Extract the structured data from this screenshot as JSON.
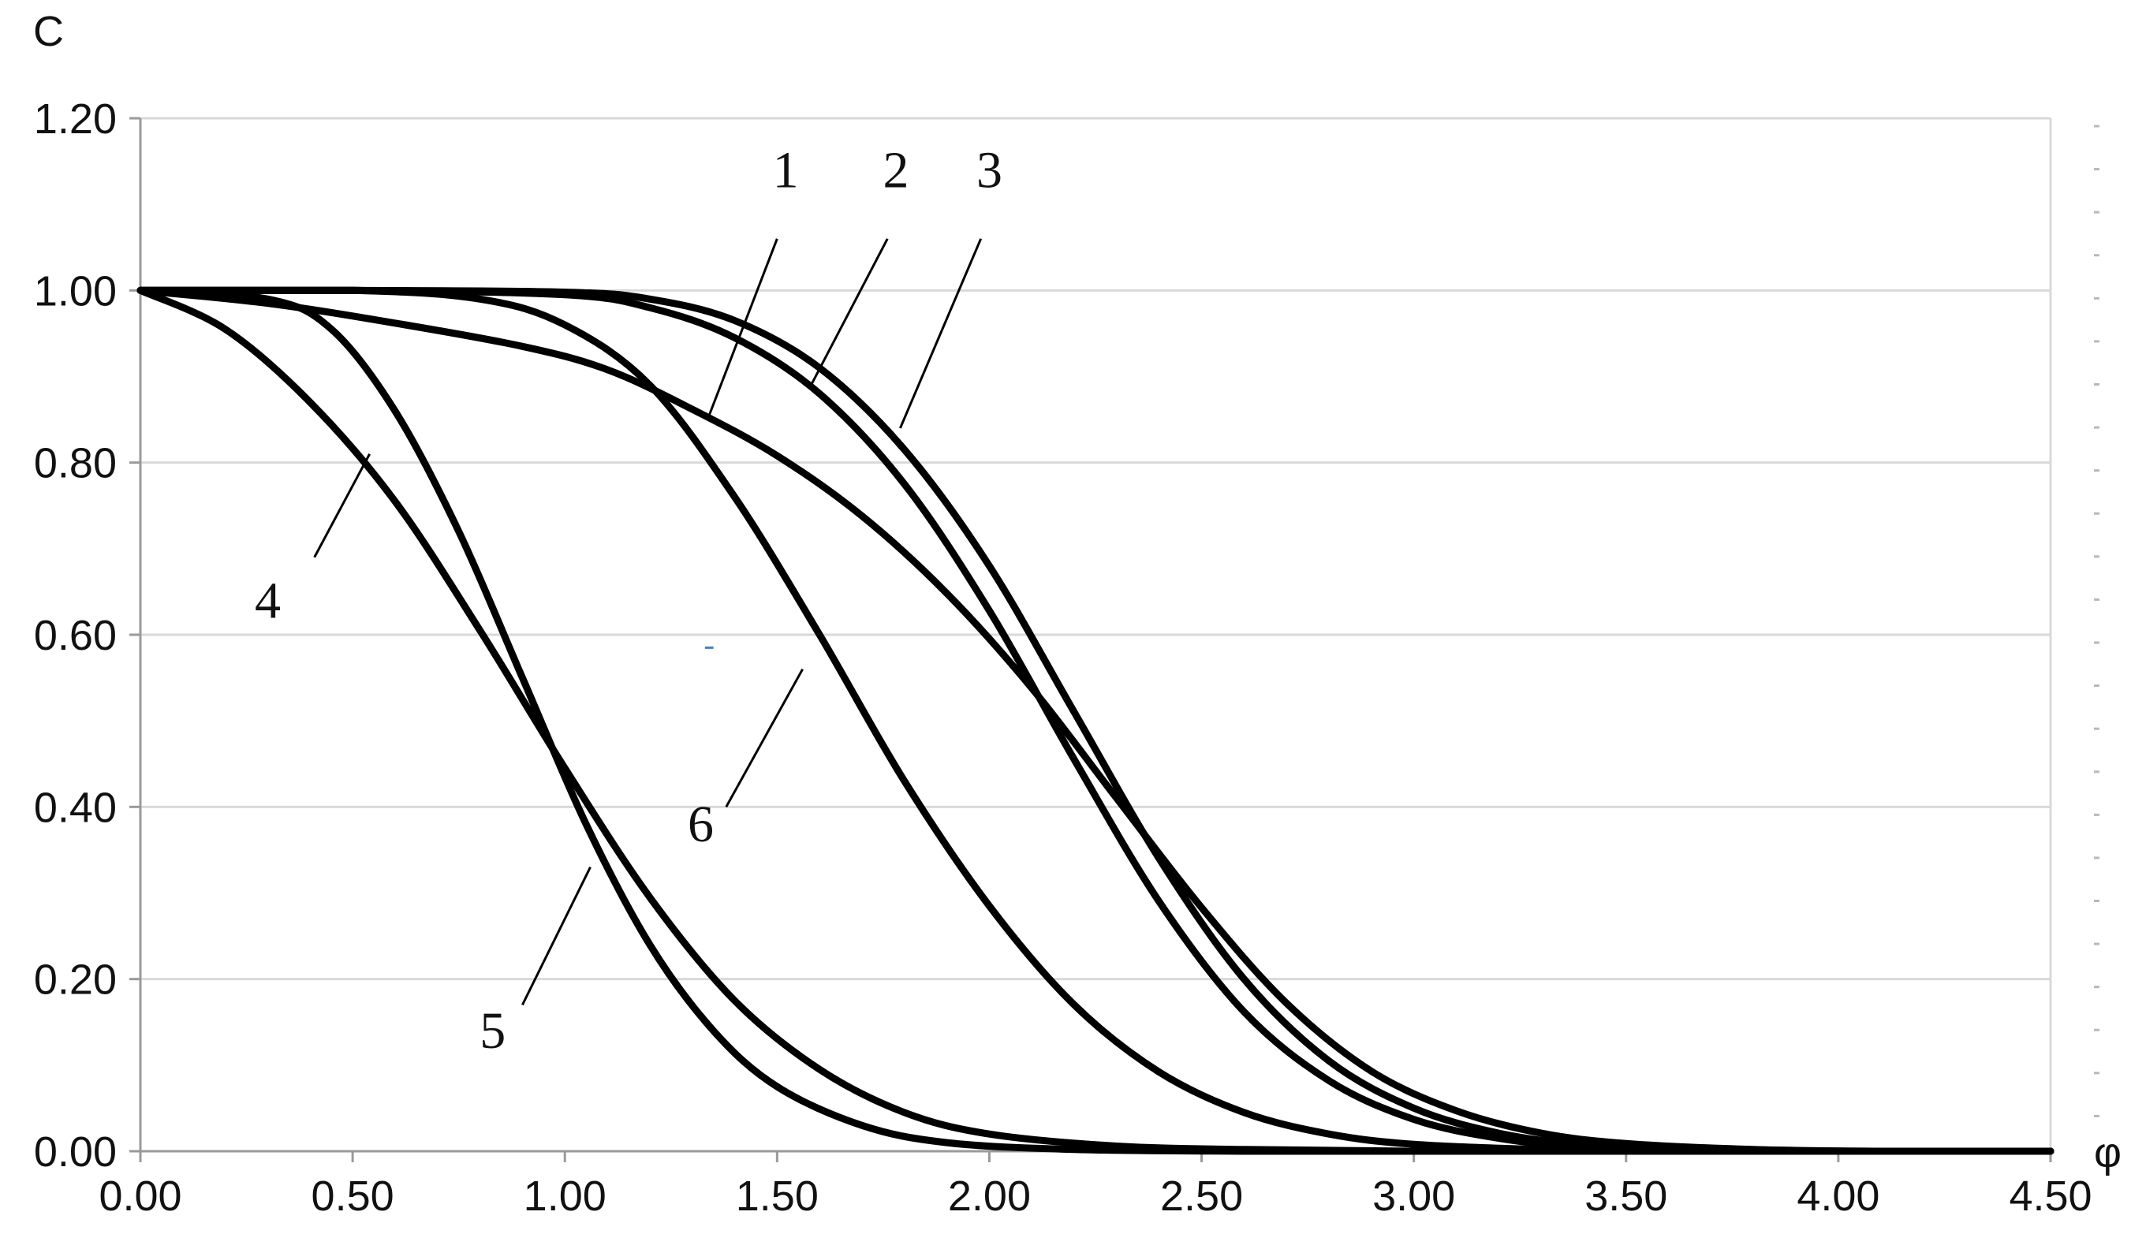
{
  "chart_data": {
    "type": "line",
    "title": "",
    "xlabel": "φ",
    "ylabel": "C",
    "xlim": [
      0,
      4.5
    ],
    "ylim": [
      0,
      1.2
    ],
    "x_tick_labels": [
      "0.00",
      "0.50",
      "1.00",
      "1.50",
      "2.00",
      "2.50",
      "3.00",
      "3.50",
      "4.00",
      "4.50"
    ],
    "y_tick_labels": [
      "0.00",
      "0.20",
      "0.40",
      "0.60",
      "0.80",
      "1.00",
      "1.20"
    ],
    "grid": "horizontal",
    "line_color": "#000000",
    "series": [
      {
        "name": "1",
        "x": [
          0.0,
          0.3,
          0.6,
          0.9,
          1.1,
          1.3,
          1.5,
          1.7,
          1.9,
          2.1,
          2.3,
          2.5,
          2.7,
          2.9,
          3.1,
          3.3,
          3.5,
          3.8,
          4.1,
          4.5
        ],
        "y": [
          1.0,
          0.985,
          0.962,
          0.935,
          0.908,
          0.862,
          0.808,
          0.738,
          0.648,
          0.538,
          0.41,
          0.283,
          0.172,
          0.093,
          0.047,
          0.021,
          0.009,
          0.002,
          0.0,
          0.0
        ]
      },
      {
        "name": "2",
        "x": [
          0.0,
          0.5,
          1.0,
          1.2,
          1.4,
          1.6,
          1.8,
          2.0,
          2.2,
          2.4,
          2.6,
          2.8,
          3.0,
          3.2,
          3.4,
          3.7,
          4.0,
          4.5
        ],
        "y": [
          1.0,
          1.0,
          0.995,
          0.98,
          0.945,
          0.88,
          0.775,
          0.628,
          0.455,
          0.29,
          0.162,
          0.082,
          0.037,
          0.015,
          0.005,
          0.001,
          0.0,
          0.0
        ]
      },
      {
        "name": "3",
        "x": [
          0.0,
          0.5,
          1.0,
          1.2,
          1.4,
          1.6,
          1.8,
          2.0,
          2.2,
          2.4,
          2.6,
          2.8,
          3.0,
          3.2,
          3.4,
          3.7,
          4.0,
          4.5
        ],
        "y": [
          1.0,
          1.0,
          0.998,
          0.99,
          0.965,
          0.91,
          0.815,
          0.68,
          0.51,
          0.34,
          0.2,
          0.105,
          0.05,
          0.021,
          0.008,
          0.002,
          0.0,
          0.0
        ]
      },
      {
        "name": "4",
        "x": [
          0.0,
          0.2,
          0.4,
          0.6,
          0.8,
          1.0,
          1.2,
          1.4,
          1.6,
          1.8,
          2.0,
          2.3,
          2.6,
          3.0,
          3.5,
          4.5
        ],
        "y": [
          1.0,
          0.955,
          0.87,
          0.755,
          0.605,
          0.445,
          0.295,
          0.175,
          0.095,
          0.045,
          0.02,
          0.006,
          0.002,
          0.0,
          0.0,
          0.0
        ]
      },
      {
        "name": "5",
        "x": [
          0.0,
          0.3,
          0.45,
          0.6,
          0.75,
          0.9,
          1.05,
          1.2,
          1.35,
          1.5,
          1.7,
          1.9,
          2.2,
          2.6,
          3.0,
          4.5
        ],
        "y": [
          1.0,
          0.99,
          0.955,
          0.86,
          0.72,
          0.55,
          0.38,
          0.24,
          0.14,
          0.075,
          0.03,
          0.01,
          0.002,
          0.0,
          0.0,
          0.0
        ]
      },
      {
        "name": "6",
        "x": [
          0.0,
          0.5,
          0.8,
          1.0,
          1.2,
          1.4,
          1.6,
          1.8,
          2.0,
          2.2,
          2.4,
          2.6,
          2.8,
          3.0,
          3.3,
          3.6,
          4.5
        ],
        "y": [
          1.0,
          1.0,
          0.99,
          0.96,
          0.89,
          0.76,
          0.6,
          0.43,
          0.285,
          0.17,
          0.092,
          0.045,
          0.02,
          0.008,
          0.002,
          0.0,
          0.0
        ]
      }
    ],
    "labels": [
      {
        "text": "1",
        "label_at": [
          1.52,
          1.14
        ],
        "line_from": [
          1.5,
          1.06
        ],
        "line_to": [
          1.34,
          0.855
        ]
      },
      {
        "text": "2",
        "label_at": [
          1.78,
          1.14
        ],
        "line_from": [
          1.76,
          1.06
        ],
        "line_to": [
          1.58,
          0.89
        ]
      },
      {
        "text": "3",
        "label_at": [
          2.0,
          1.14
        ],
        "line_from": [
          1.98,
          1.06
        ],
        "line_to": [
          1.79,
          0.84
        ]
      },
      {
        "text": "4",
        "label_at": [
          0.3,
          0.64
        ],
        "line_from": [
          0.41,
          0.69
        ],
        "line_to": [
          0.54,
          0.81
        ]
      },
      {
        "text": "5",
        "label_at": [
          0.83,
          0.14
        ],
        "line_from": [
          0.9,
          0.17
        ],
        "line_to": [
          1.06,
          0.33
        ]
      },
      {
        "text": "6",
        "label_at": [
          1.32,
          0.38
        ],
        "line_from": [
          1.38,
          0.4
        ],
        "line_to": [
          1.56,
          0.56
        ]
      }
    ]
  }
}
